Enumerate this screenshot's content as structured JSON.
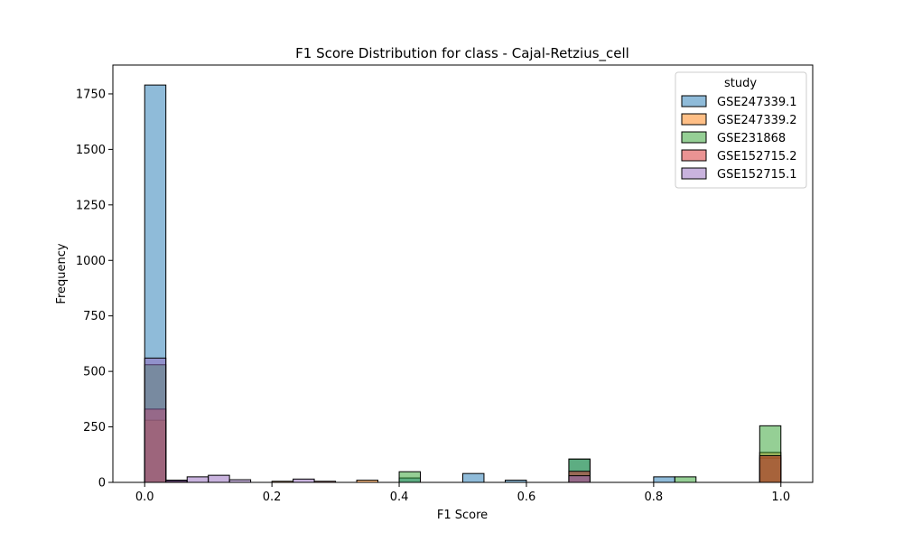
{
  "chart_data": {
    "type": "bar",
    "title": "F1 Score Distribution for class - Cajal-Retzius_cell",
    "xlabel": "F1 Score",
    "ylabel": "Frequency",
    "xlim": [
      -0.05,
      1.05
    ],
    "ylim": [
      0,
      1880
    ],
    "xticks": [
      0.0,
      0.2,
      0.4,
      0.6,
      0.8,
      1.0
    ],
    "xtick_labels": [
      "0.0",
      "0.2",
      "0.4",
      "0.6",
      "0.8",
      "1.0"
    ],
    "yticks": [
      0,
      250,
      500,
      750,
      1000,
      1250,
      1500,
      1750
    ],
    "ytick_labels": [
      "0",
      "250",
      "500",
      "750",
      "1000",
      "1250",
      "1500",
      "1750"
    ],
    "bin_width": 0.0333,
    "bin_starts": [
      0.0,
      0.0333,
      0.0667,
      0.1,
      0.1333,
      0.1667,
      0.2,
      0.2333,
      0.2667,
      0.3,
      0.3333,
      0.3667,
      0.4,
      0.4333,
      0.4667,
      0.5,
      0.5333,
      0.5667,
      0.6,
      0.6333,
      0.6667,
      0.7,
      0.7333,
      0.7667,
      0.8,
      0.8333,
      0.8667,
      0.9,
      0.9333,
      0.9667
    ],
    "legend_title": "study",
    "legend_position": "upper right",
    "grid": false,
    "series": [
      {
        "name": "GSE247339.1",
        "color": "#1f77b4",
        "values": [
          1790,
          10,
          0,
          0,
          0,
          0,
          0,
          0,
          0,
          0,
          0,
          0,
          20,
          0,
          0,
          40,
          0,
          10,
          0,
          0,
          105,
          0,
          0,
          0,
          25,
          0,
          0,
          0,
          0,
          110
        ]
      },
      {
        "name": "GSE247339.2",
        "color": "#ff7f0e",
        "values": [
          280,
          5,
          0,
          0,
          0,
          0,
          5,
          0,
          0,
          0,
          10,
          0,
          0,
          0,
          0,
          0,
          0,
          0,
          0,
          0,
          0,
          0,
          0,
          0,
          0,
          0,
          0,
          0,
          0,
          135
        ]
      },
      {
        "name": "GSE231868",
        "color": "#2ca02c",
        "values": [
          530,
          0,
          0,
          0,
          0,
          0,
          0,
          0,
          0,
          0,
          0,
          0,
          48,
          0,
          0,
          0,
          0,
          0,
          0,
          0,
          105,
          0,
          0,
          0,
          0,
          25,
          0,
          0,
          0,
          255
        ]
      },
      {
        "name": "GSE152715.2",
        "color": "#d62728",
        "values": [
          330,
          5,
          0,
          0,
          0,
          0,
          0,
          0,
          5,
          0,
          0,
          0,
          0,
          0,
          0,
          0,
          0,
          0,
          0,
          0,
          50,
          0,
          0,
          0,
          0,
          0,
          0,
          0,
          0,
          120
        ]
      },
      {
        "name": "GSE152715.1",
        "color": "#9467bd",
        "values": [
          560,
          10,
          25,
          32,
          12,
          0,
          0,
          15,
          0,
          0,
          0,
          0,
          0,
          0,
          0,
          0,
          0,
          0,
          0,
          0,
          30,
          0,
          0,
          0,
          0,
          0,
          0,
          0,
          0,
          0
        ]
      }
    ]
  }
}
